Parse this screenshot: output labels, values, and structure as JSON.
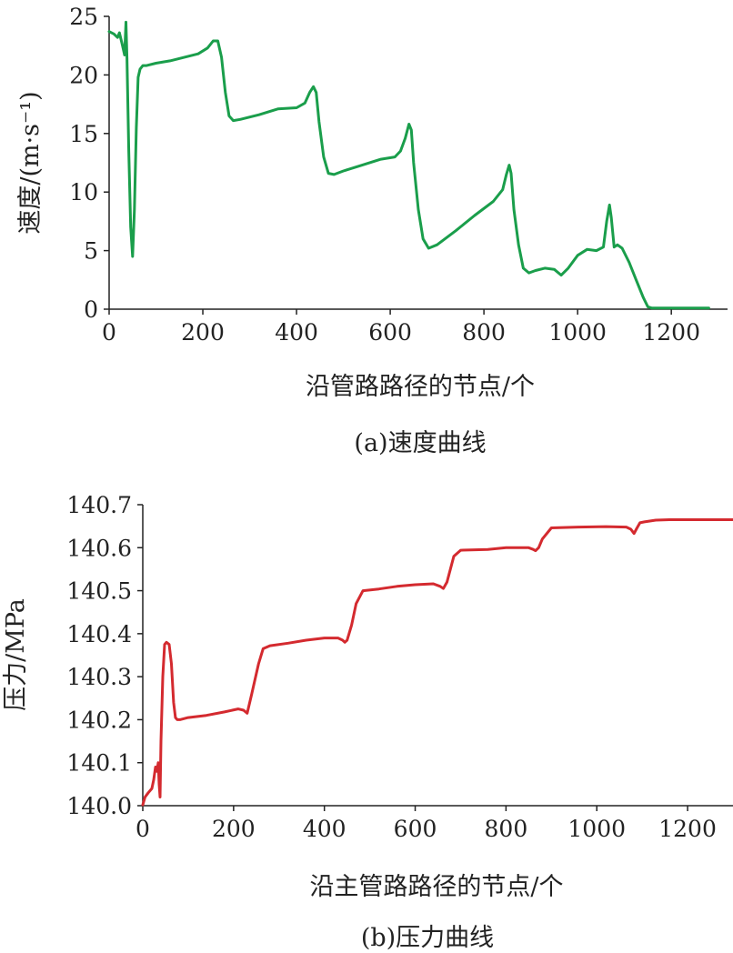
{
  "chart_data": [
    {
      "type": "line",
      "caption": "(a)速度曲线",
      "xlabel": "沿管路路径的节点/个",
      "ylabel": "速度/(m·s⁻¹)",
      "xlim": [
        0,
        1320
      ],
      "ylim": [
        0,
        25
      ],
      "xticks": [
        "0",
        "200",
        "400",
        "600",
        "800",
        "1000",
        "1200"
      ],
      "yticks": [
        "0",
        "5",
        "10",
        "15",
        "20",
        "25"
      ],
      "xtick_values": [
        0,
        200,
        400,
        600,
        800,
        1000,
        1200
      ],
      "ytick_values": [
        0,
        5,
        10,
        15,
        20,
        25
      ],
      "color": "#1a9e4b",
      "series": [
        {
          "x": [
            0,
            10,
            18,
            22,
            28,
            33,
            36,
            38,
            42,
            46,
            50,
            54,
            58,
            62,
            66,
            72,
            80,
            100,
            130,
            160,
            190,
            210,
            222,
            232,
            240,
            248,
            256,
            265,
            280,
            320,
            360,
            400,
            418,
            428,
            436,
            442,
            448,
            458,
            468,
            480,
            500,
            540,
            580,
            610,
            622,
            632,
            640,
            645,
            650,
            660,
            670,
            682,
            700,
            740,
            780,
            820,
            840,
            848,
            854,
            858,
            864,
            874,
            884,
            896,
            910,
            930,
            950,
            965,
            980,
            1000,
            1020,
            1040,
            1055,
            1062,
            1068,
            1072,
            1078,
            1085,
            1095,
            1110,
            1125,
            1140,
            1150,
            1158,
            1170,
            1200,
            1240,
            1280
          ],
          "y": [
            23.7,
            23.5,
            23.2,
            23.6,
            22.6,
            21.7,
            24.5,
            21.5,
            13.5,
            7.0,
            4.5,
            8.5,
            15.5,
            19.8,
            20.5,
            20.8,
            20.8,
            21.0,
            21.2,
            21.5,
            21.8,
            22.3,
            22.9,
            22.9,
            21.5,
            18.5,
            16.5,
            16.1,
            16.2,
            16.6,
            17.1,
            17.2,
            17.6,
            18.5,
            19.0,
            18.5,
            16.0,
            13.0,
            11.6,
            11.5,
            11.8,
            12.3,
            12.8,
            13.0,
            13.5,
            14.6,
            15.8,
            15.3,
            12.5,
            8.5,
            6.0,
            5.2,
            5.5,
            6.7,
            8.0,
            9.2,
            10.2,
            11.5,
            12.3,
            11.6,
            8.5,
            5.5,
            3.5,
            3.1,
            3.3,
            3.5,
            3.4,
            2.9,
            3.5,
            4.6,
            5.1,
            5.0,
            5.3,
            7.5,
            8.9,
            7.8,
            5.3,
            5.5,
            5.2,
            4.0,
            2.5,
            1.0,
            0.2,
            0.1,
            0.1,
            0.1,
            0.1,
            0.1
          ]
        }
      ]
    },
    {
      "type": "line",
      "caption": "(b)压力曲线",
      "xlabel": "沿主管路路径的节点/个",
      "ylabel": "压力/MPa",
      "xlim": [
        0,
        1300
      ],
      "ylim": [
        140.0,
        140.7
      ],
      "xticks": [
        "0",
        "200",
        "400",
        "600",
        "800",
        "1000",
        "1200"
      ],
      "yticks": [
        "140.0",
        "140.1",
        "140.2",
        "140.3",
        "140.4",
        "140.5",
        "140.6",
        "140.7"
      ],
      "xtick_values": [
        0,
        200,
        400,
        600,
        800,
        1000,
        1200
      ],
      "ytick_values": [
        140.0,
        140.1,
        140.2,
        140.3,
        140.4,
        140.5,
        140.6,
        140.7
      ],
      "color": "#d42a2f",
      "series": [
        {
          "x": [
            0,
            5,
            12,
            20,
            24,
            28,
            31,
            34,
            36,
            38,
            40,
            44,
            48,
            52,
            58,
            63,
            68,
            72,
            76,
            82,
            100,
            140,
            180,
            210,
            222,
            230,
            240,
            255,
            265,
            280,
            320,
            360,
            400,
            430,
            440,
            445,
            450,
            460,
            470,
            485,
            520,
            560,
            600,
            640,
            655,
            662,
            670,
            685,
            700,
            760,
            800,
            850,
            860,
            865,
            872,
            880,
            900,
            960,
            1020,
            1065,
            1075,
            1082,
            1088,
            1095,
            1105,
            1130,
            1160,
            1220,
            1300
          ],
          "y": [
            140.002,
            140.02,
            140.03,
            140.04,
            140.06,
            140.09,
            140.08,
            140.1,
            140.05,
            140.02,
            140.15,
            140.3,
            140.375,
            140.38,
            140.375,
            140.33,
            140.24,
            140.205,
            140.2,
            140.2,
            140.205,
            140.21,
            140.218,
            140.225,
            140.222,
            140.215,
            140.26,
            140.33,
            140.365,
            140.372,
            140.378,
            140.385,
            140.39,
            140.39,
            140.385,
            140.38,
            140.385,
            140.42,
            140.47,
            140.5,
            140.504,
            140.51,
            140.514,
            140.516,
            140.51,
            140.505,
            140.52,
            140.58,
            140.594,
            140.596,
            140.6,
            140.6,
            140.596,
            140.593,
            140.6,
            140.62,
            140.646,
            140.648,
            140.649,
            140.648,
            140.643,
            140.633,
            140.645,
            140.658,
            140.66,
            140.664,
            140.665,
            140.665,
            140.665
          ]
        }
      ]
    }
  ]
}
